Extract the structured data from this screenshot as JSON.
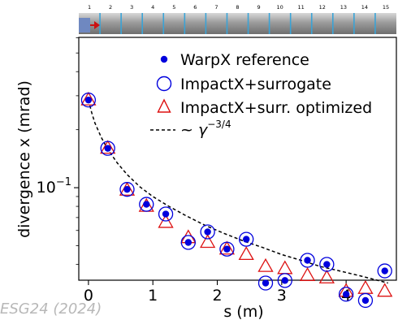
{
  "beamline": {
    "cell_numbers": [
      "1",
      "2",
      "3",
      "4",
      "5",
      "6",
      "7",
      "8",
      "9",
      "10",
      "11",
      "12",
      "13",
      "14",
      "15"
    ],
    "colors": {
      "pipe": "#a9a9a9",
      "separator": "#3aa3d6",
      "arrow": "#cc1111",
      "source": "#6f88c0"
    }
  },
  "chart_data": {
    "type": "scatter",
    "xlabel": "s (m)",
    "ylabel": "divergence x (mrad)",
    "xlim": [
      -0.15,
      4.78
    ],
    "ylim_log10": [
      -1.48,
      -0.22
    ],
    "y_scale": "log",
    "x_ticks": [
      0,
      1,
      2,
      3,
      4
    ],
    "x_tick_labels": [
      "0",
      "1",
      "2",
      "3",
      "4"
    ],
    "y_tick_major_labels": [
      "$10^{-1}$"
    ],
    "legend_position": "upper-right",
    "grid": false,
    "series": [
      {
        "name": "WarpX reference",
        "marker": "dot",
        "color": "#0000dd",
        "x": [
          0.0,
          0.3,
          0.6,
          0.9,
          1.2,
          1.55,
          1.85,
          2.15,
          2.45,
          2.75,
          3.05,
          3.4,
          3.7,
          4.0,
          4.3,
          4.6
        ],
        "y": [
          0.285,
          0.16,
          0.098,
          0.082,
          0.073,
          0.052,
          0.059,
          0.048,
          0.054,
          0.032,
          0.033,
          0.042,
          0.04,
          0.028,
          0.026,
          0.037
        ]
      },
      {
        "name": "ImpactX+surrogate",
        "marker": "open-circle",
        "color": "#0000dd",
        "x": [
          0.0,
          0.3,
          0.6,
          0.9,
          1.2,
          1.55,
          1.85,
          2.15,
          2.45,
          2.75,
          3.05,
          3.4,
          3.7,
          4.0,
          4.3,
          4.6
        ],
        "y": [
          0.285,
          0.16,
          0.098,
          0.082,
          0.073,
          0.052,
          0.059,
          0.048,
          0.054,
          0.032,
          0.033,
          0.042,
          0.04,
          0.028,
          0.026,
          0.037
        ]
      },
      {
        "name": "ImpactX+surr. optimized",
        "marker": "open-triangle",
        "color": "#dd1111",
        "x": [
          0.0,
          0.3,
          0.6,
          0.9,
          1.2,
          1.55,
          1.85,
          2.15,
          2.45,
          2.75,
          3.05,
          3.4,
          3.7,
          4.0,
          4.3,
          4.6
        ],
        "y": [
          0.285,
          0.16,
          0.097,
          0.08,
          0.066,
          0.055,
          0.052,
          0.048,
          0.045,
          0.039,
          0.038,
          0.035,
          0.034,
          0.029,
          0.03,
          0.029
        ]
      },
      {
        "name": "~γ^{-3/4}",
        "marker": "dashed-line",
        "color": "#000000",
        "x": [
          0.0,
          0.05,
          0.1,
          0.2,
          0.3,
          0.45,
          0.6,
          0.8,
          1.0,
          1.25,
          1.5,
          1.8,
          2.1,
          2.4,
          2.7,
          3.0,
          3.3,
          3.6,
          3.9,
          4.2,
          4.5,
          4.65
        ],
        "y": [
          0.285,
          0.245,
          0.217,
          0.182,
          0.158,
          0.134,
          0.117,
          0.101,
          0.09,
          0.08,
          0.072,
          0.064,
          0.058,
          0.053,
          0.049,
          0.045,
          0.042,
          0.039,
          0.037,
          0.035,
          0.033,
          0.032
        ]
      }
    ],
    "legend": {
      "entries": [
        "WarpX reference",
        "ImpactX+surrogate",
        "ImpactX+surr. optimized"
      ],
      "gamma_prefix": "~ ",
      "gamma_symbol": "γ",
      "gamma_exponent": "−3/4"
    }
  },
  "citation": "ESG24 (2024)"
}
